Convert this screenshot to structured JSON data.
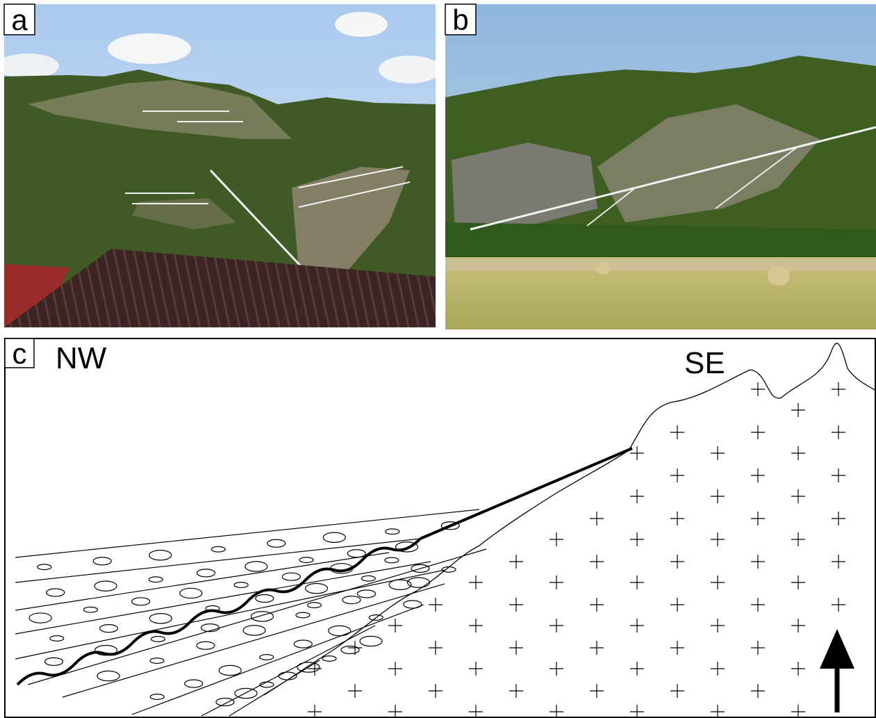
{
  "panels": [
    {
      "label": "a"
    },
    {
      "label": "b"
    },
    {
      "label": "c",
      "left_label": "NW",
      "right_label": "SE"
    }
  ]
}
